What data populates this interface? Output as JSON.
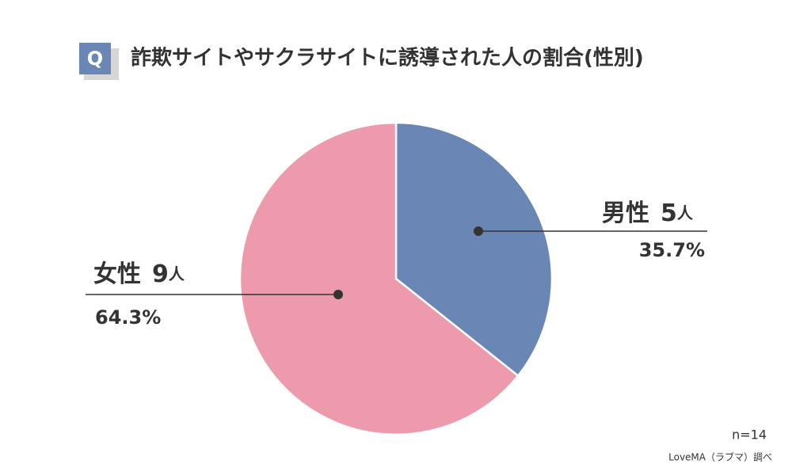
{
  "chart_data": {
    "type": "pie",
    "badge": "Q",
    "title": "詐欺サイトやサクラサイトに誘導された人の割合(性別)",
    "categories": [
      "男性",
      "女性"
    ],
    "counts": [
      5,
      9
    ],
    "count_unit": "人",
    "values": [
      35.7,
      64.3
    ],
    "value_labels": [
      "35.7%",
      "64.3%"
    ],
    "colors": [
      "#6a86b5",
      "#ec9aac"
    ],
    "sample_size": "n=14",
    "source": "LoveMA（ラブマ）調べ"
  }
}
